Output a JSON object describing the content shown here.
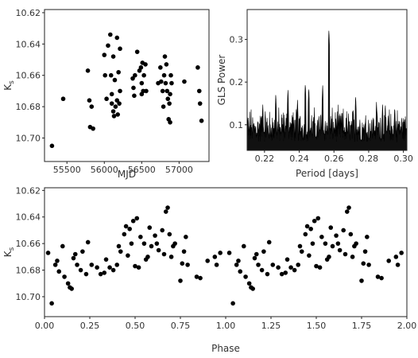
{
  "chart_data": [
    {
      "type": "scatter",
      "xlabel": "MJD",
      "ylabel": "K_s",
      "xlim": [
        55200,
        57400
      ],
      "ylim": [
        10.715,
        10.618
      ],
      "y_inverted": true,
      "xticks": [
        55500,
        56000,
        56500,
        57000
      ],
      "xtick_labels": [
        "55500",
        "56000",
        "56500",
        "57000"
      ],
      "yticks": [
        10.62,
        10.64,
        10.66,
        10.68,
        10.7
      ],
      "ytick_labels": [
        "10.62",
        "10.64",
        "10.66",
        "10.68",
        "10.70"
      ],
      "grid": false,
      "marker_color": "#000000",
      "points": [
        [
          55300,
          10.705
        ],
        [
          55450,
          10.675
        ],
        [
          55780,
          10.657
        ],
        [
          55800,
          10.676
        ],
        [
          55810,
          10.693
        ],
        [
          55830,
          10.68
        ],
        [
          55850,
          10.694
        ],
        [
          56000,
          10.647
        ],
        [
          56010,
          10.66
        ],
        [
          56030,
          10.675
        ],
        [
          56050,
          10.641
        ],
        [
          56080,
          10.634
        ],
        [
          56090,
          10.66
        ],
        [
          56100,
          10.672
        ],
        [
          56100,
          10.678
        ],
        [
          56120,
          10.683
        ],
        [
          56120,
          10.648
        ],
        [
          56130,
          10.686
        ],
        [
          56140,
          10.663
        ],
        [
          56150,
          10.68
        ],
        [
          56170,
          10.636
        ],
        [
          56170,
          10.676
        ],
        [
          56180,
          10.685
        ],
        [
          56190,
          10.658
        ],
        [
          56200,
          10.678
        ],
        [
          56210,
          10.643
        ],
        [
          56210,
          10.67
        ],
        [
          56380,
          10.662
        ],
        [
          56390,
          10.668
        ],
        [
          56400,
          10.673
        ],
        [
          56410,
          10.66
        ],
        [
          56440,
          10.645
        ],
        [
          56470,
          10.657
        ],
        [
          56490,
          10.655
        ],
        [
          56500,
          10.665
        ],
        [
          56500,
          10.672
        ],
        [
          56510,
          10.652
        ],
        [
          56520,
          10.67
        ],
        [
          56530,
          10.66
        ],
        [
          56550,
          10.653
        ],
        [
          56560,
          10.67
        ],
        [
          56720,
          10.665
        ],
        [
          56750,
          10.655
        ],
        [
          56760,
          10.664
        ],
        [
          56780,
          10.67
        ],
        [
          56790,
          10.68
        ],
        [
          56800,
          10.66
        ],
        [
          56810,
          10.648
        ],
        [
          56820,
          10.665
        ],
        [
          56830,
          10.653
        ],
        [
          56840,
          10.67
        ],
        [
          56850,
          10.675
        ],
        [
          56860,
          10.688
        ],
        [
          56870,
          10.678
        ],
        [
          56880,
          10.672
        ],
        [
          56880,
          10.69
        ],
        [
          56890,
          10.66
        ],
        [
          56900,
          10.665
        ],
        [
          57070,
          10.664
        ],
        [
          57250,
          10.655
        ],
        [
          57270,
          10.67
        ],
        [
          57280,
          10.678
        ],
        [
          57300,
          10.689
        ]
      ]
    },
    {
      "type": "line",
      "xlabel": "Period [days]",
      "ylabel": "GLS  Power",
      "xlim": [
        0.21,
        0.302
      ],
      "ylim": [
        0.04,
        0.37
      ],
      "xticks": [
        0.22,
        0.24,
        0.26,
        0.28,
        0.3
      ],
      "xtick_labels": [
        "0.22",
        "0.24",
        "0.26",
        "0.28",
        "0.30"
      ],
      "yticks": [
        0.1,
        0.2,
        0.3
      ],
      "ytick_labels": [
        "0.1",
        "0.2",
        "0.3"
      ],
      "grid": false,
      "line_color": "#000000",
      "baseline_min": 0.06,
      "baseline_max": 0.15,
      "peaks": [
        [
          0.2571,
          0.325
        ],
        [
          0.2435,
          0.2
        ],
        [
          0.2455,
          0.19
        ],
        [
          0.2535,
          0.195
        ],
        [
          0.2335,
          0.185
        ],
        [
          0.2265,
          0.175
        ],
        [
          0.2725,
          0.17
        ],
        [
          0.2845,
          0.155
        ],
        [
          0.219,
          0.15
        ],
        [
          0.288,
          0.15
        ],
        [
          0.295,
          0.145
        ],
        [
          0.239,
          0.16
        ]
      ]
    },
    {
      "type": "scatter",
      "xlabel": "Phase",
      "ylabel": "K_s",
      "xlim": [
        0.0,
        2.0
      ],
      "ylim": [
        10.715,
        10.618
      ],
      "y_inverted": true,
      "xticks": [
        0.0,
        0.25,
        0.5,
        0.75,
        1.0,
        1.25,
        1.5,
        1.75,
        2.0
      ],
      "xtick_labels": [
        "0.00",
        "0.25",
        "0.50",
        "0.75",
        "1.00",
        "1.25",
        "1.50",
        "1.75",
        "2.00"
      ],
      "yticks": [
        10.62,
        10.64,
        10.66,
        10.68,
        10.7
      ],
      "ytick_labels": [
        "10.62",
        "10.64",
        "10.66",
        "10.68",
        "10.70"
      ],
      "grid": false,
      "marker_color": "#000000",
      "phase_points": [
        [
          0.02,
          10.667
        ],
        [
          0.04,
          10.705
        ],
        [
          0.06,
          10.676
        ],
        [
          0.07,
          10.673
        ],
        [
          0.08,
          10.681
        ],
        [
          0.1,
          10.662
        ],
        [
          0.11,
          10.685
        ],
        [
          0.13,
          10.69
        ],
        [
          0.14,
          10.693
        ],
        [
          0.15,
          10.694
        ],
        [
          0.16,
          10.671
        ],
        [
          0.17,
          10.668
        ],
        [
          0.18,
          10.676
        ],
        [
          0.2,
          10.68
        ],
        [
          0.21,
          10.666
        ],
        [
          0.23,
          10.683
        ],
        [
          0.24,
          10.659
        ],
        [
          0.26,
          10.676
        ],
        [
          0.29,
          10.678
        ],
        [
          0.31,
          10.683
        ],
        [
          0.33,
          10.682
        ],
        [
          0.34,
          10.672
        ],
        [
          0.36,
          10.678
        ],
        [
          0.38,
          10.68
        ],
        [
          0.4,
          10.676
        ],
        [
          0.41,
          10.662
        ],
        [
          0.42,
          10.666
        ],
        [
          0.44,
          10.653
        ],
        [
          0.45,
          10.647
        ],
        [
          0.46,
          10.669
        ],
        [
          0.47,
          10.649
        ],
        [
          0.48,
          10.66
        ],
        [
          0.49,
          10.643
        ],
        [
          0.5,
          10.677
        ],
        [
          0.51,
          10.641
        ],
        [
          0.52,
          10.678
        ],
        [
          0.53,
          10.655
        ],
        [
          0.55,
          10.66
        ],
        [
          0.56,
          10.672
        ],
        [
          0.57,
          10.67
        ],
        [
          0.58,
          10.648
        ],
        [
          0.59,
          10.662
        ],
        [
          0.61,
          10.654
        ],
        [
          0.62,
          10.66
        ],
        [
          0.63,
          10.665
        ],
        [
          0.65,
          10.65
        ],
        [
          0.66,
          10.668
        ],
        [
          0.67,
          10.636
        ],
        [
          0.68,
          10.633
        ],
        [
          0.69,
          10.653
        ],
        [
          0.7,
          10.67
        ],
        [
          0.71,
          10.662
        ],
        [
          0.72,
          10.66
        ],
        [
          0.75,
          10.688
        ],
        [
          0.76,
          10.675
        ],
        [
          0.77,
          10.666
        ],
        [
          0.78,
          10.655
        ],
        [
          0.79,
          10.676
        ],
        [
          0.84,
          10.685
        ],
        [
          0.86,
          10.686
        ],
        [
          0.9,
          10.673
        ],
        [
          0.94,
          10.67
        ],
        [
          0.95,
          10.676
        ],
        [
          0.97,
          10.667
        ]
      ]
    }
  ]
}
